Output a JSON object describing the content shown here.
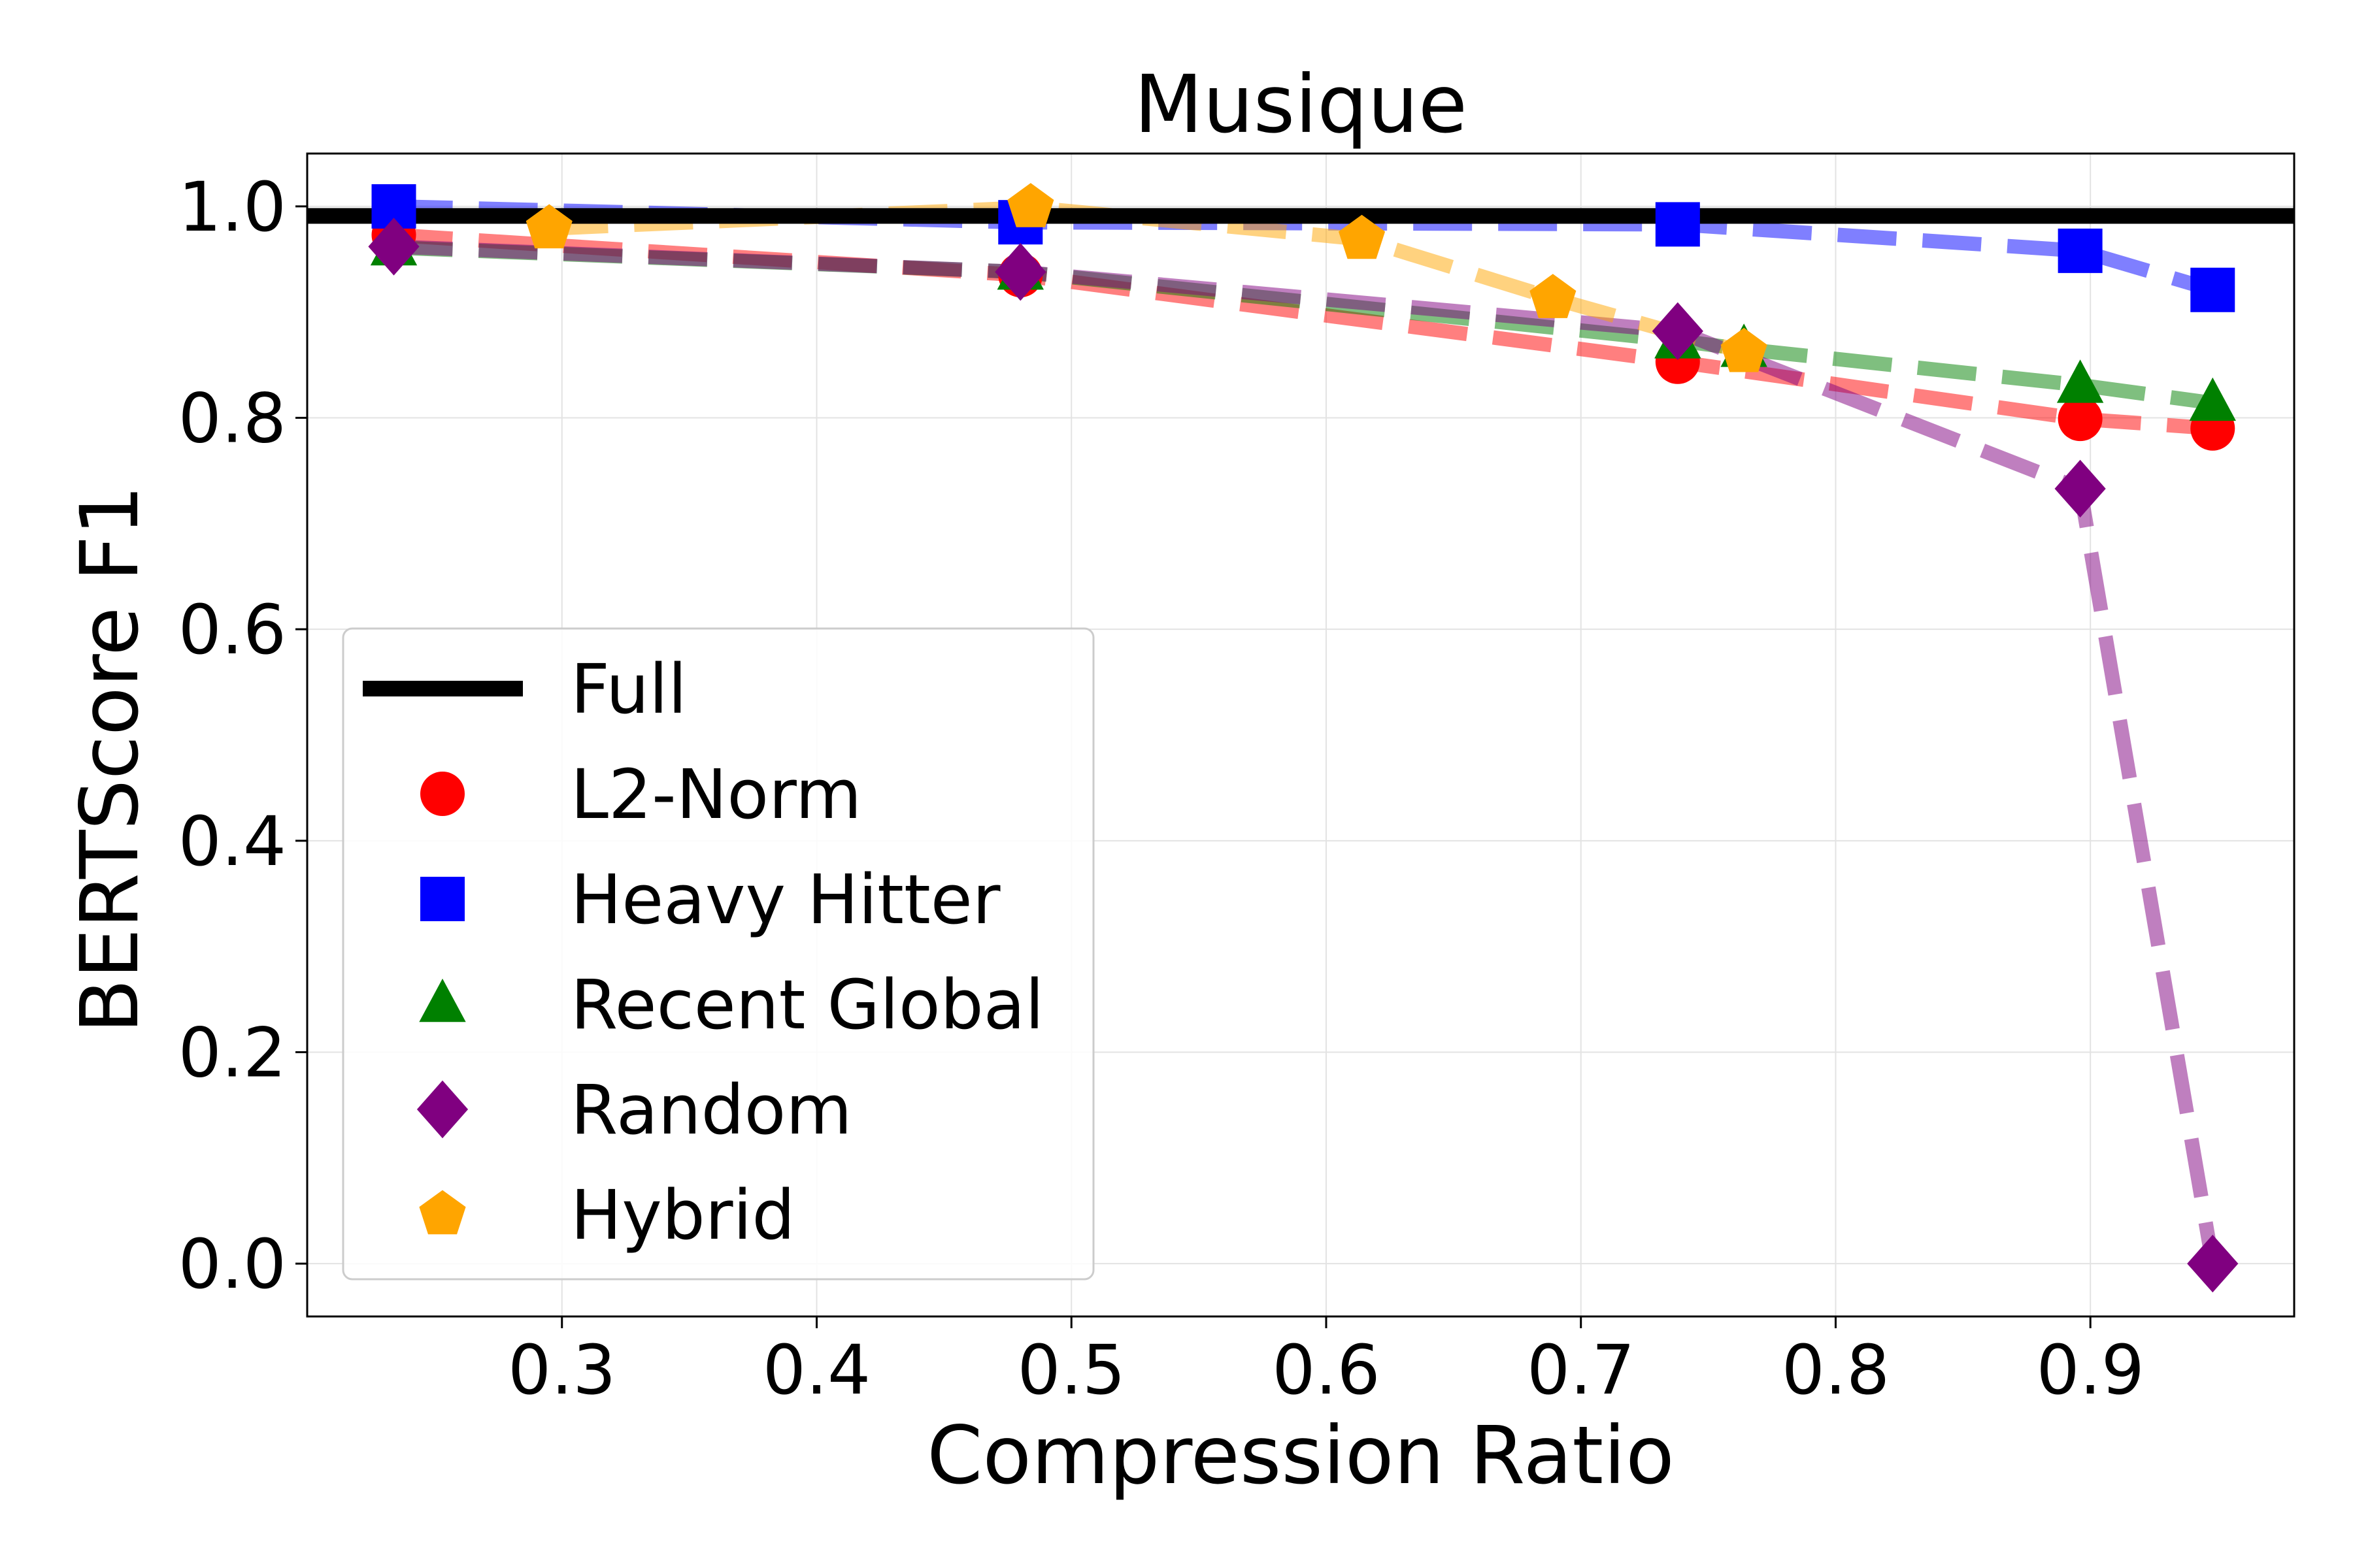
{
  "chart_data": {
    "type": "line",
    "title": "Musique",
    "xlabel": "Compression Ratio",
    "ylabel": "BERTScore F1",
    "xlim": [
      0.2,
      0.98
    ],
    "ylim": [
      -0.05,
      1.05
    ],
    "xticks": [
      0.3,
      0.4,
      0.5,
      0.6,
      0.7,
      0.8,
      0.9
    ],
    "xtick_labels": [
      "0.3",
      "0.4",
      "0.5",
      "0.6",
      "0.7",
      "0.8",
      "0.9"
    ],
    "yticks": [
      0.0,
      0.2,
      0.4,
      0.6,
      0.8,
      1.0
    ],
    "ytick_labels": [
      "0.0",
      "0.2",
      "0.4",
      "0.6",
      "0.8",
      "1.0"
    ],
    "grid": true,
    "legend_position": "lower-left",
    "reference_line": {
      "name": "Full",
      "y": 0.991,
      "color": "#000000"
    },
    "series": [
      {
        "name": "L2-Norm",
        "color": "#ff0000",
        "marker": "circle",
        "x": [
          0.234,
          0.48,
          0.738,
          0.896,
          0.948
        ],
        "y": [
          0.973,
          0.935,
          0.853,
          0.799,
          0.79
        ]
      },
      {
        "name": "Heavy Hitter",
        "color": "#0000ff",
        "marker": "square",
        "x": [
          0.234,
          0.48,
          0.738,
          0.896,
          0.948
        ],
        "y": [
          1.0,
          0.985,
          0.983,
          0.958,
          0.921
        ]
      },
      {
        "name": "Recent Global",
        "color": "#008000",
        "marker": "triangle",
        "x": [
          0.234,
          0.48,
          0.738,
          0.764,
          0.896,
          0.948
        ],
        "y": [
          0.961,
          0.938,
          0.873,
          0.865,
          0.831,
          0.814
        ]
      },
      {
        "name": "Random",
        "color": "#800080",
        "marker": "diamond",
        "x": [
          0.234,
          0.48,
          0.738,
          0.896,
          0.948
        ],
        "y": [
          0.962,
          0.938,
          0.882,
          0.733,
          0.0
        ]
      },
      {
        "name": "Hybrid",
        "color": "#ffa500",
        "marker": "pentagon",
        "x": [
          0.295,
          0.484,
          0.614,
          0.689,
          0.764
        ],
        "y": [
          0.979,
          0.999,
          0.969,
          0.913,
          0.862
        ]
      }
    ]
  }
}
